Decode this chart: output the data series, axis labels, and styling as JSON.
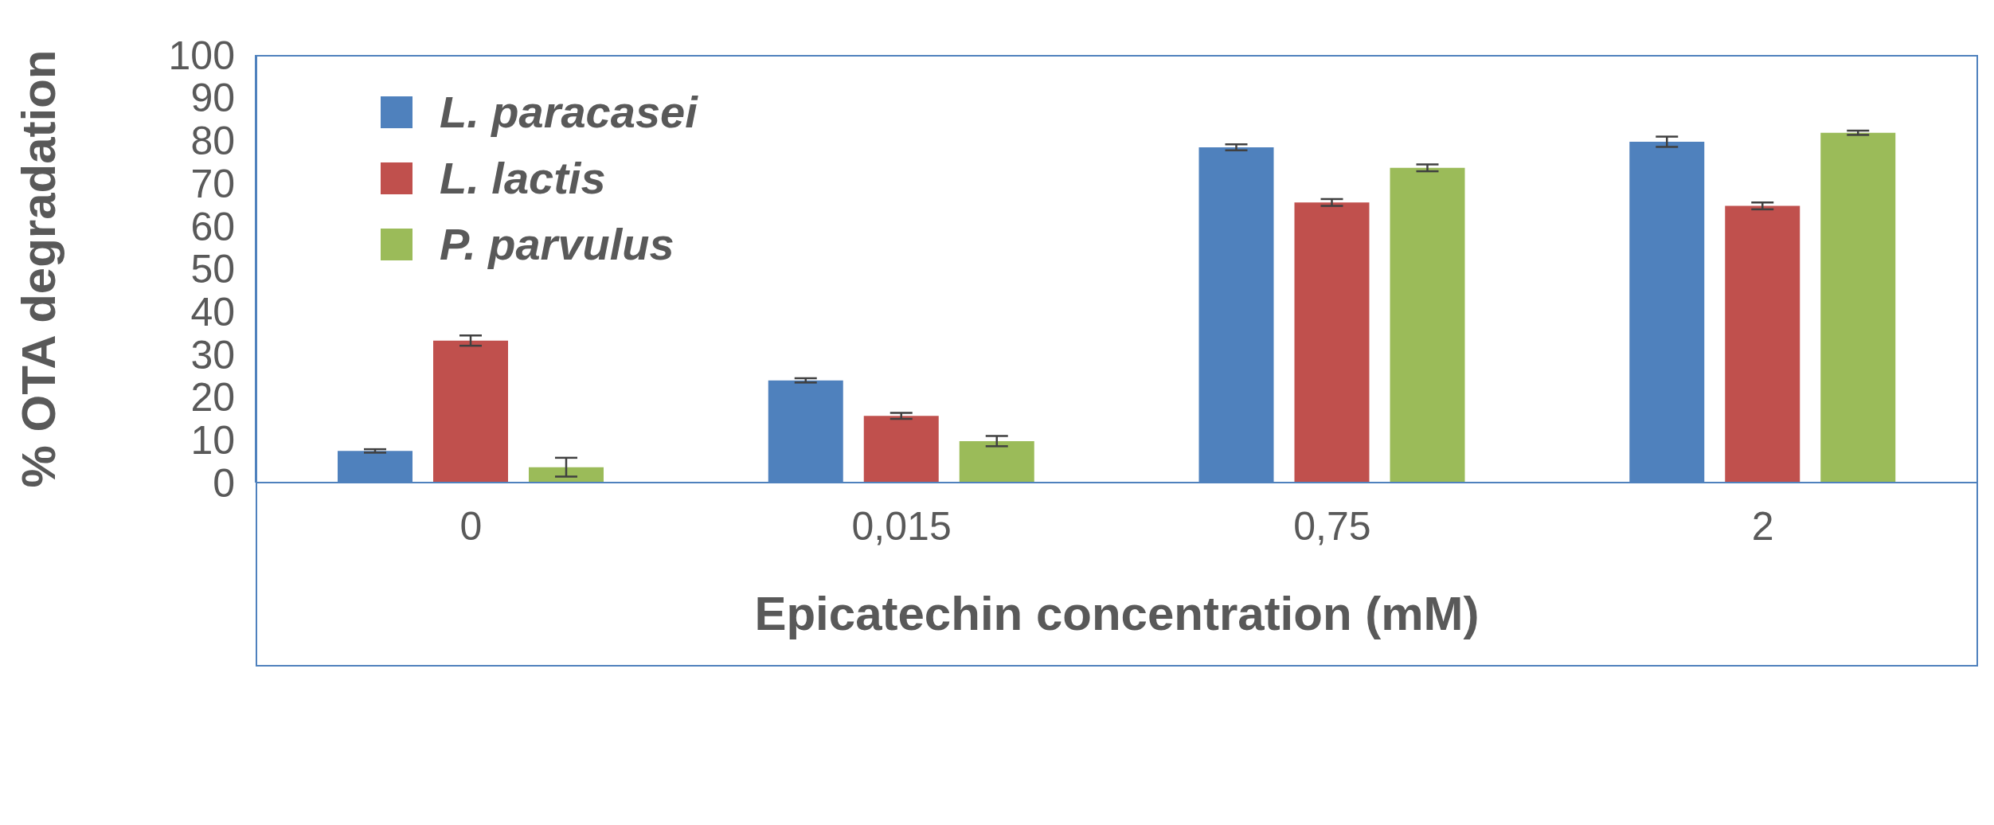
{
  "chart_data": {
    "type": "bar",
    "xlabel": "Epicatechin concentration (mM)",
    "ylabel": "% OTA degradation",
    "categories": [
      "0",
      "0,015",
      "0,75",
      "2"
    ],
    "series": [
      {
        "name": "L. paracasei",
        "color": "#4f81bd",
        "values": [
          7.4,
          23.9,
          78.4,
          79.7
        ],
        "errors": [
          0.4,
          0.5,
          0.7,
          1.2
        ]
      },
      {
        "name": "L. lactis",
        "color": "#c0504d",
        "values": [
          33.2,
          15.6,
          65.5,
          64.7
        ],
        "errors": [
          1.2,
          0.7,
          0.8,
          0.8
        ]
      },
      {
        "name": "P. parvulus",
        "color": "#9bbb59",
        "values": [
          3.6,
          9.7,
          73.6,
          81.8
        ],
        "errors": [
          2.2,
          1.2,
          0.8,
          0.5
        ]
      }
    ],
    "ylim": [
      0,
      100
    ],
    "yticks": [
      0,
      10,
      20,
      30,
      40,
      50,
      60,
      70,
      80,
      90,
      100
    ],
    "grid": false,
    "legend": "top left"
  }
}
